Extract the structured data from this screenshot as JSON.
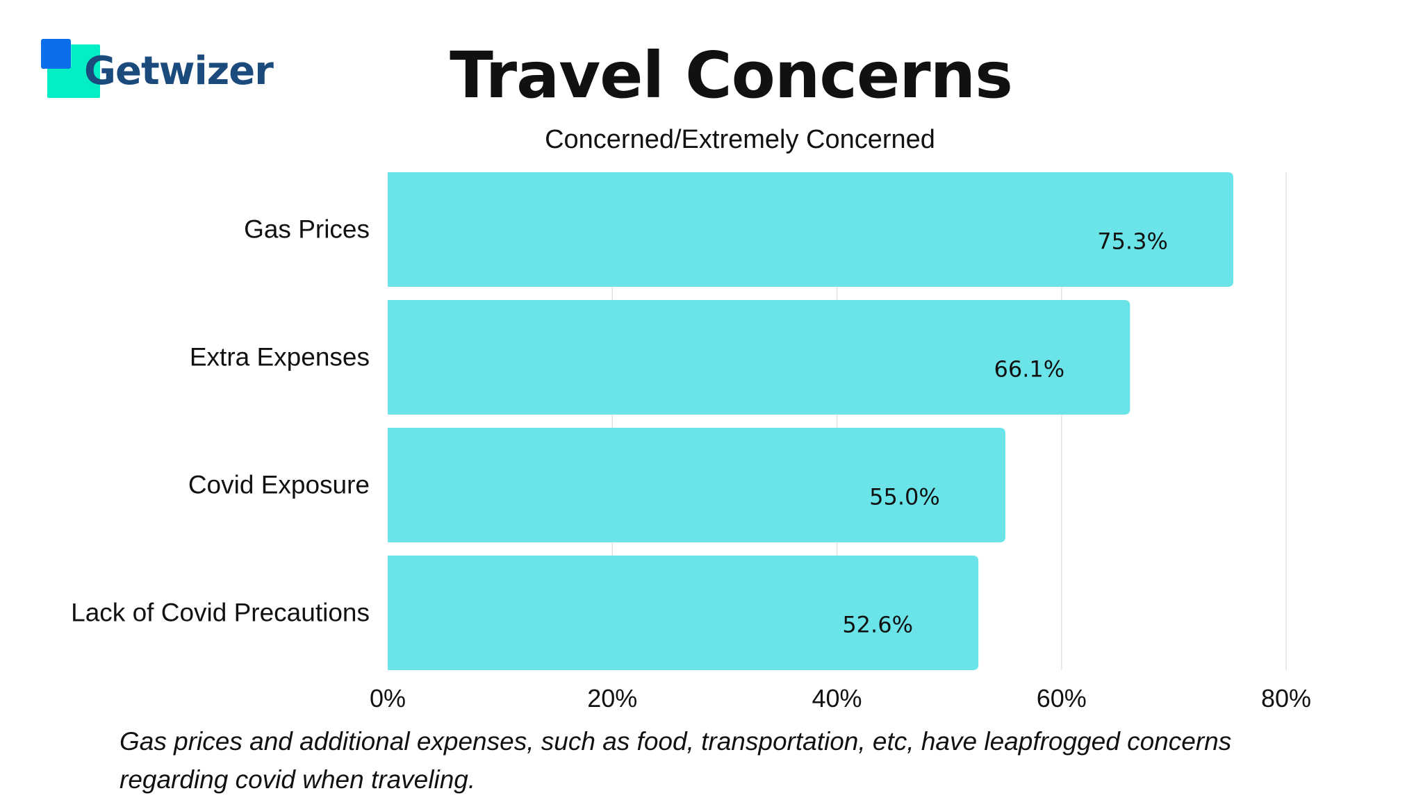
{
  "logo": {
    "text": "Getwizer",
    "colors": {
      "blue": "#0a6fe8",
      "teal": "#03eec4",
      "text": "#1b4a7d"
    }
  },
  "chart_data": {
    "type": "bar",
    "orientation": "horizontal",
    "title": "Travel Concerns",
    "subtitle": "Concerned/Extremely Concerned",
    "categories": [
      "Gas Prices",
      "Extra Expenses",
      "Covid Exposure",
      "Lack of Covid Precautions"
    ],
    "values": [
      75.3,
      66.1,
      55.0,
      52.6
    ],
    "value_labels": [
      "75.3%",
      "66.1%",
      "55.0%",
      "52.6%"
    ],
    "xlim": [
      0,
      80
    ],
    "xticks": [
      0,
      20,
      40,
      60,
      80
    ],
    "xtick_labels": [
      "0%",
      "20%",
      "40%",
      "60%",
      "80%"
    ],
    "xlabel": "",
    "ylabel": "",
    "grid": true,
    "bar_color": "#6ae4e8"
  },
  "footnote": "Gas prices and additional expenses, such as food, transportation, etc, have leapfrogged concerns regarding covid when traveling."
}
